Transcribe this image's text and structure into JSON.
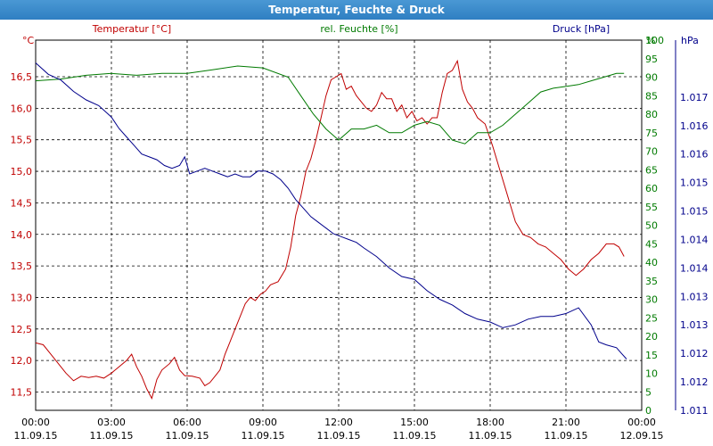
{
  "window": {
    "title": "Temperatur, Feuchte & Druck"
  },
  "chart_data": {
    "type": "line",
    "grid": true,
    "axes": {
      "left": {
        "unit": "°C",
        "title": "Temperatur [°C]",
        "ylim": [
          11.21,
          17.08
        ],
        "ticks": [
          "11,5",
          "12,0",
          "12,5",
          "13,0",
          "13,5",
          "14,0",
          "14,5",
          "15,0",
          "15,5",
          "16,0",
          "16,5"
        ],
        "color": "#c00000"
      },
      "right1": {
        "unit": "%",
        "title": "rel. Feuchte [%]",
        "ylim": [
          0,
          100
        ],
        "ticks": [
          "0",
          "5",
          "10",
          "15",
          "20",
          "25",
          "30",
          "35",
          "40",
          "45",
          "50",
          "55",
          "60",
          "65",
          "70",
          "75",
          "80",
          "85",
          "90",
          "95",
          "100"
        ],
        "color": "#007a00"
      },
      "right2": {
        "unit": "hPa",
        "title": "Druck [hPa]",
        "ylim": [
          1011.0,
          1017.5
        ],
        "ticks": [
          "1.011",
          "1.012",
          "1.012",
          "1.013",
          "1.013",
          "1.014",
          "1.014",
          "1.015",
          "1.015",
          "1.016",
          "1.016",
          "1.017"
        ],
        "color": "#00008b"
      }
    },
    "x_ticks": [
      {
        "time": "00:00",
        "date": "11.09.15"
      },
      {
        "time": "03:00",
        "date": "11.09.15"
      },
      {
        "time": "06:00",
        "date": "11.09.15"
      },
      {
        "time": "09:00",
        "date": "11.09.15"
      },
      {
        "time": "12:00",
        "date": "11.09.15"
      },
      {
        "time": "15:00",
        "date": "11.09.15"
      },
      {
        "time": "18:00",
        "date": "11.09.15"
      },
      {
        "time": "21:00",
        "date": "11.09.15"
      },
      {
        "time": "00:00",
        "date": "12.09.15"
      }
    ],
    "xlim_hours": [
      0,
      24
    ],
    "series": [
      {
        "name": "Temperatur [°C]",
        "axis": "left",
        "color": "#c00000",
        "points": [
          [
            0,
            12.28
          ],
          [
            0.3,
            12.25
          ],
          [
            0.6,
            12.1
          ],
          [
            0.9,
            11.95
          ],
          [
            1.2,
            11.8
          ],
          [
            1.5,
            11.68
          ],
          [
            1.8,
            11.75
          ],
          [
            2.1,
            11.73
          ],
          [
            2.4,
            11.75
          ],
          [
            2.7,
            11.72
          ],
          [
            3.0,
            11.8
          ],
          [
            3.3,
            11.9
          ],
          [
            3.6,
            12.0
          ],
          [
            3.8,
            12.1
          ],
          [
            4.0,
            11.9
          ],
          [
            4.2,
            11.75
          ],
          [
            4.4,
            11.55
          ],
          [
            4.6,
            11.4
          ],
          [
            4.8,
            11.7
          ],
          [
            5.0,
            11.85
          ],
          [
            5.3,
            11.95
          ],
          [
            5.5,
            12.05
          ],
          [
            5.7,
            11.85
          ],
          [
            5.9,
            11.76
          ],
          [
            6.2,
            11.75
          ],
          [
            6.5,
            11.72
          ],
          [
            6.7,
            11.6
          ],
          [
            6.9,
            11.65
          ],
          [
            7.1,
            11.75
          ],
          [
            7.3,
            11.85
          ],
          [
            7.5,
            12.1
          ],
          [
            7.7,
            12.3
          ],
          [
            7.9,
            12.5
          ],
          [
            8.1,
            12.7
          ],
          [
            8.3,
            12.9
          ],
          [
            8.5,
            13.0
          ],
          [
            8.7,
            12.95
          ],
          [
            8.9,
            13.05
          ],
          [
            9.1,
            13.1
          ],
          [
            9.3,
            13.2
          ],
          [
            9.6,
            13.25
          ],
          [
            9.9,
            13.45
          ],
          [
            10.1,
            13.8
          ],
          [
            10.3,
            14.3
          ],
          [
            10.5,
            14.6
          ],
          [
            10.7,
            15.0
          ],
          [
            10.9,
            15.2
          ],
          [
            11.1,
            15.5
          ],
          [
            11.3,
            15.85
          ],
          [
            11.5,
            16.2
          ],
          [
            11.7,
            16.45
          ],
          [
            11.9,
            16.5
          ],
          [
            12.1,
            16.55
          ],
          [
            12.3,
            16.3
          ],
          [
            12.5,
            16.35
          ],
          [
            12.7,
            16.2
          ],
          [
            12.9,
            16.1
          ],
          [
            13.1,
            16.0
          ],
          [
            13.3,
            15.95
          ],
          [
            13.5,
            16.05
          ],
          [
            13.7,
            16.25
          ],
          [
            13.9,
            16.15
          ],
          [
            14.1,
            16.15
          ],
          [
            14.3,
            15.95
          ],
          [
            14.5,
            16.05
          ],
          [
            14.7,
            15.85
          ],
          [
            14.9,
            15.95
          ],
          [
            15.1,
            15.8
          ],
          [
            15.3,
            15.85
          ],
          [
            15.5,
            15.75
          ],
          [
            15.7,
            15.85
          ],
          [
            15.9,
            15.85
          ],
          [
            16.1,
            16.25
          ],
          [
            16.3,
            16.55
          ],
          [
            16.5,
            16.6
          ],
          [
            16.7,
            16.75
          ],
          [
            16.9,
            16.3
          ],
          [
            17.1,
            16.1
          ],
          [
            17.3,
            16.0
          ],
          [
            17.5,
            15.85
          ],
          [
            17.8,
            15.75
          ],
          [
            18.1,
            15.4
          ],
          [
            18.4,
            15.0
          ],
          [
            18.7,
            14.6
          ],
          [
            19.0,
            14.2
          ],
          [
            19.3,
            14.0
          ],
          [
            19.6,
            13.95
          ],
          [
            19.9,
            13.85
          ],
          [
            20.2,
            13.8
          ],
          [
            20.5,
            13.7
          ],
          [
            20.8,
            13.6
          ],
          [
            21.1,
            13.45
          ],
          [
            21.4,
            13.35
          ],
          [
            21.7,
            13.45
          ],
          [
            22.0,
            13.6
          ],
          [
            22.3,
            13.7
          ],
          [
            22.6,
            13.85
          ],
          [
            22.9,
            13.85
          ],
          [
            23.1,
            13.8
          ],
          [
            23.3,
            13.65
          ]
        ]
      },
      {
        "name": "rel. Feuchte [%]",
        "axis": "right1",
        "color": "#007a00",
        "points": [
          [
            0,
            89
          ],
          [
            1,
            89.5
          ],
          [
            2,
            90.5
          ],
          [
            3,
            91
          ],
          [
            4,
            90.5
          ],
          [
            5,
            91
          ],
          [
            6,
            91
          ],
          [
            7,
            92
          ],
          [
            8,
            93
          ],
          [
            9,
            92.5
          ],
          [
            10,
            90
          ],
          [
            10.5,
            85
          ],
          [
            11,
            80
          ],
          [
            11.5,
            76
          ],
          [
            12,
            73
          ],
          [
            12.5,
            76
          ],
          [
            13,
            76
          ],
          [
            13.5,
            77
          ],
          [
            14,
            75
          ],
          [
            14.5,
            75
          ],
          [
            15,
            77
          ],
          [
            15.5,
            78
          ],
          [
            16,
            77
          ],
          [
            16.5,
            73
          ],
          [
            17,
            72
          ],
          [
            17.5,
            75
          ],
          [
            18,
            75
          ],
          [
            18.5,
            77
          ],
          [
            19,
            80
          ],
          [
            19.5,
            83
          ],
          [
            20,
            86
          ],
          [
            20.5,
            87
          ],
          [
            21,
            87.5
          ],
          [
            21.5,
            88
          ],
          [
            22,
            89
          ],
          [
            22.5,
            90
          ],
          [
            23,
            91
          ],
          [
            23.3,
            91
          ]
        ]
      },
      {
        "name": "Druck [hPa]",
        "axis": "right2",
        "color": "#00008b",
        "points": [
          [
            0,
            1017.1
          ],
          [
            0.5,
            1016.9
          ],
          [
            1.0,
            1016.8
          ],
          [
            1.5,
            1016.6
          ],
          [
            2.0,
            1016.45
          ],
          [
            2.5,
            1016.35
          ],
          [
            3.0,
            1016.15
          ],
          [
            3.3,
            1015.95
          ],
          [
            3.6,
            1015.8
          ],
          [
            3.9,
            1015.65
          ],
          [
            4.2,
            1015.5
          ],
          [
            4.5,
            1015.45
          ],
          [
            4.8,
            1015.4
          ],
          [
            5.1,
            1015.3
          ],
          [
            5.4,
            1015.25
          ],
          [
            5.7,
            1015.3
          ],
          [
            5.9,
            1015.45
          ],
          [
            6.1,
            1015.15
          ],
          [
            6.4,
            1015.2
          ],
          [
            6.7,
            1015.25
          ],
          [
            7.0,
            1015.2
          ],
          [
            7.3,
            1015.15
          ],
          [
            7.6,
            1015.1
          ],
          [
            7.9,
            1015.15
          ],
          [
            8.2,
            1015.1
          ],
          [
            8.5,
            1015.1
          ],
          [
            8.8,
            1015.2
          ],
          [
            9.1,
            1015.2
          ],
          [
            9.4,
            1015.15
          ],
          [
            9.7,
            1015.05
          ],
          [
            10.0,
            1014.9
          ],
          [
            10.3,
            1014.7
          ],
          [
            10.6,
            1014.55
          ],
          [
            10.9,
            1014.4
          ],
          [
            11.2,
            1014.3
          ],
          [
            11.5,
            1014.2
          ],
          [
            11.8,
            1014.1
          ],
          [
            12.1,
            1014.05
          ],
          [
            12.4,
            1014.0
          ],
          [
            12.7,
            1013.95
          ],
          [
            13.0,
            1013.85
          ],
          [
            13.5,
            1013.7
          ],
          [
            14.0,
            1013.5
          ],
          [
            14.5,
            1013.35
          ],
          [
            15.0,
            1013.3
          ],
          [
            15.5,
            1013.1
          ],
          [
            16.0,
            1012.95
          ],
          [
            16.5,
            1012.85
          ],
          [
            17.0,
            1012.7
          ],
          [
            17.5,
            1012.6
          ],
          [
            18.0,
            1012.55
          ],
          [
            18.5,
            1012.45
          ],
          [
            19.0,
            1012.5
          ],
          [
            19.5,
            1012.6
          ],
          [
            20.0,
            1012.65
          ],
          [
            20.5,
            1012.65
          ],
          [
            21.0,
            1012.7
          ],
          [
            21.5,
            1012.8
          ],
          [
            22.0,
            1012.5
          ],
          [
            22.3,
            1012.2
          ],
          [
            22.6,
            1012.15
          ],
          [
            23.0,
            1012.1
          ],
          [
            23.2,
            1012.0
          ],
          [
            23.4,
            1011.9
          ]
        ]
      }
    ]
  }
}
